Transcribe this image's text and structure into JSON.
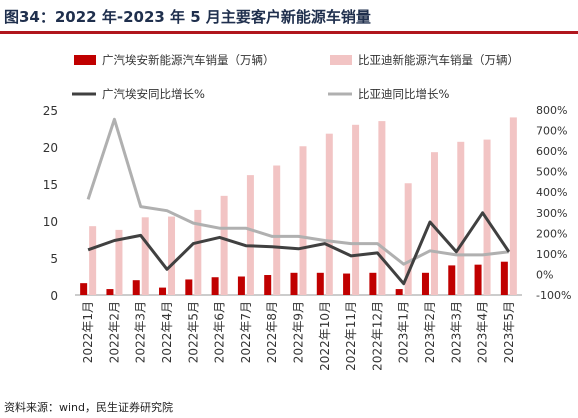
{
  "header": {
    "title": "图34：2022 年-2023 年 5 月主要客户新能源车销量"
  },
  "footer": {
    "source": "资料来源：wind，民生证券研究院"
  },
  "chart_data": {
    "type": "bar",
    "categories": [
      "2022年1月",
      "2022年2月",
      "2022年3月",
      "2022年4月",
      "2022年5月",
      "2022年6月",
      "2022年7月",
      "2022年8月",
      "2022年9月",
      "2022年10月",
      "2022年11月",
      "2022年12月",
      "2023年1月",
      "2023年2月",
      "2023年3月",
      "2023年4月",
      "2023年5月"
    ],
    "series": [
      {
        "name": "广汽埃安新能源汽车销量（万辆）",
        "kind": "bar",
        "axis": "left",
        "color": "#c00000",
        "values": [
          1.6,
          0.8,
          2.0,
          1.0,
          2.1,
          2.4,
          2.5,
          2.7,
          3.0,
          3.0,
          2.9,
          3.0,
          0.8,
          3.0,
          4.0,
          4.1,
          4.5
        ]
      },
      {
        "name": "比亚迪新能源汽车销量（万辆）",
        "kind": "bar",
        "axis": "left",
        "color": "#f2c4c4",
        "values": [
          9.3,
          8.8,
          10.5,
          10.6,
          11.5,
          13.4,
          16.2,
          17.5,
          20.1,
          21.8,
          23.0,
          23.5,
          15.1,
          19.3,
          20.7,
          21.0,
          24.0
        ]
      },
      {
        "name": "广汽埃安同比增长%",
        "kind": "line",
        "axis": "right",
        "color": "#404040",
        "values": [
          120,
          165,
          190,
          25,
          150,
          180,
          140,
          135,
          125,
          150,
          90,
          105,
          -45,
          255,
          110,
          300,
          110
        ]
      },
      {
        "name": "比亚迪同比增长%",
        "kind": "line",
        "axis": "right",
        "color": "#b0b0b0",
        "values": [
          365,
          755,
          330,
          310,
          250,
          225,
          225,
          185,
          185,
          165,
          150,
          150,
          50,
          115,
          95,
          95,
          110
        ]
      }
    ],
    "y_left": {
      "min": 0,
      "max": 25,
      "ticks": [
        0,
        5,
        10,
        15,
        20,
        25
      ]
    },
    "y_right": {
      "min": -100,
      "max": 800,
      "ticks": [
        "-100%",
        "0%",
        "100%",
        "200%",
        "300%",
        "400%",
        "500%",
        "600%",
        "700%",
        "800%"
      ]
    },
    "grid": false,
    "legend_position": "top"
  }
}
